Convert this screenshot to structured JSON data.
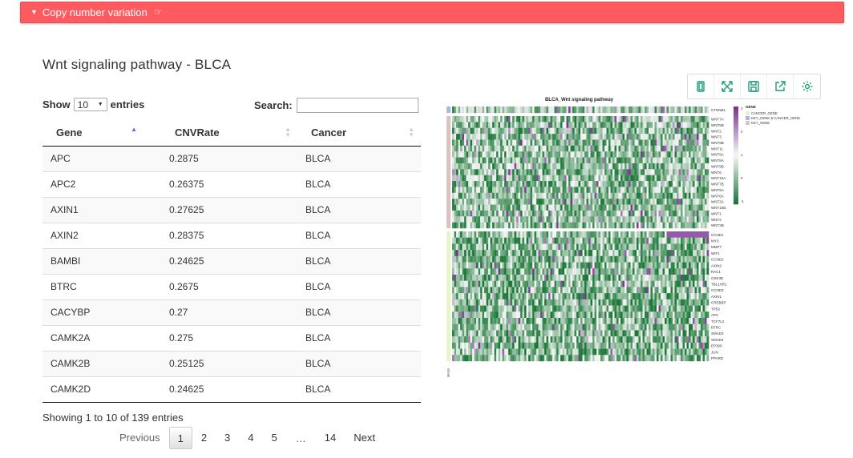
{
  "banner": {
    "label": "Copy number variation"
  },
  "section": {
    "title": "Wnt signaling pathway - BLCA"
  },
  "length": {
    "prefix": "Show",
    "value": "10",
    "suffix": "entries"
  },
  "search": {
    "label": "Search:",
    "value": ""
  },
  "table": {
    "columns": [
      "Gene",
      "CNVRate",
      "Cancer"
    ],
    "rows": [
      [
        "APC",
        "0.2875",
        "BLCA"
      ],
      [
        "APC2",
        "0.26375",
        "BLCA"
      ],
      [
        "AXIN1",
        "0.27625",
        "BLCA"
      ],
      [
        "AXIN2",
        "0.28375",
        "BLCA"
      ],
      [
        "BAMBI",
        "0.24625",
        "BLCA"
      ],
      [
        "BTRC",
        "0.2675",
        "BLCA"
      ],
      [
        "CACYBP",
        "0.27",
        "BLCA"
      ],
      [
        "CAMK2A",
        "0.275",
        "BLCA"
      ],
      [
        "CAMK2B",
        "0.25125",
        "BLCA"
      ],
      [
        "CAMK2D",
        "0.24625",
        "BLCA"
      ]
    ]
  },
  "info": "Showing 1 to 10 of 139 entries",
  "pagination": {
    "previous": "Previous",
    "pages": [
      "1",
      "2",
      "3",
      "4",
      "5"
    ],
    "ellipsis": "…",
    "last": "14",
    "next": "Next",
    "current": "1"
  },
  "toolbar": {
    "icons": [
      "copy-icon",
      "fullscreen-icon",
      "save-icon",
      "export-icon",
      "settings-icon"
    ]
  },
  "heatmap": {
    "title": "BLCA_Wnt signaling pathway",
    "group1_genes": [
      "CTNNB1"
    ],
    "group2_genes": [
      "WNT7A",
      "WNT5B",
      "WNT2",
      "WNT3",
      "WNT8B",
      "WNT11",
      "WNT9A",
      "WNT8A",
      "WNT9B",
      "WNT6",
      "WNT10A",
      "WNT7B",
      "WNT5A",
      "WNT6A",
      "WNT3A",
      "WNT10B",
      "WNT1",
      "WNT4",
      "WNT2B"
    ],
    "group3_genes": [
      "CCND1",
      "MYC",
      "MMP7",
      "WIF1",
      "CCND2",
      "AXIN2",
      "RAC1",
      "GSK3B",
      "TBL1XR1",
      "CCND3",
      "AXIN1",
      "CREBBP",
      "TP53",
      "APC",
      "TCF7L2",
      "BTRC",
      "SMAD3",
      "SMAD4",
      "EP300",
      "JUN",
      "PPARD"
    ],
    "legend_title": "GENE",
    "legend_items": [
      {
        "label": "CANCER_GENE",
        "color": "#e6f5c9"
      },
      {
        "label": "KEY_GENE & CANCER_GENE",
        "color": "#a6b8e8"
      },
      {
        "label": "KEY_GENE",
        "color": "#d8c3bd"
      }
    ],
    "scale_ticks": [
      "3",
      "2",
      "1",
      "0",
      "-1"
    ],
    "bottom_label": "GENE",
    "colors": {
      "high": "#7b3294",
      "mid": "#f7f7f7",
      "low": "#1b7837"
    }
  }
}
